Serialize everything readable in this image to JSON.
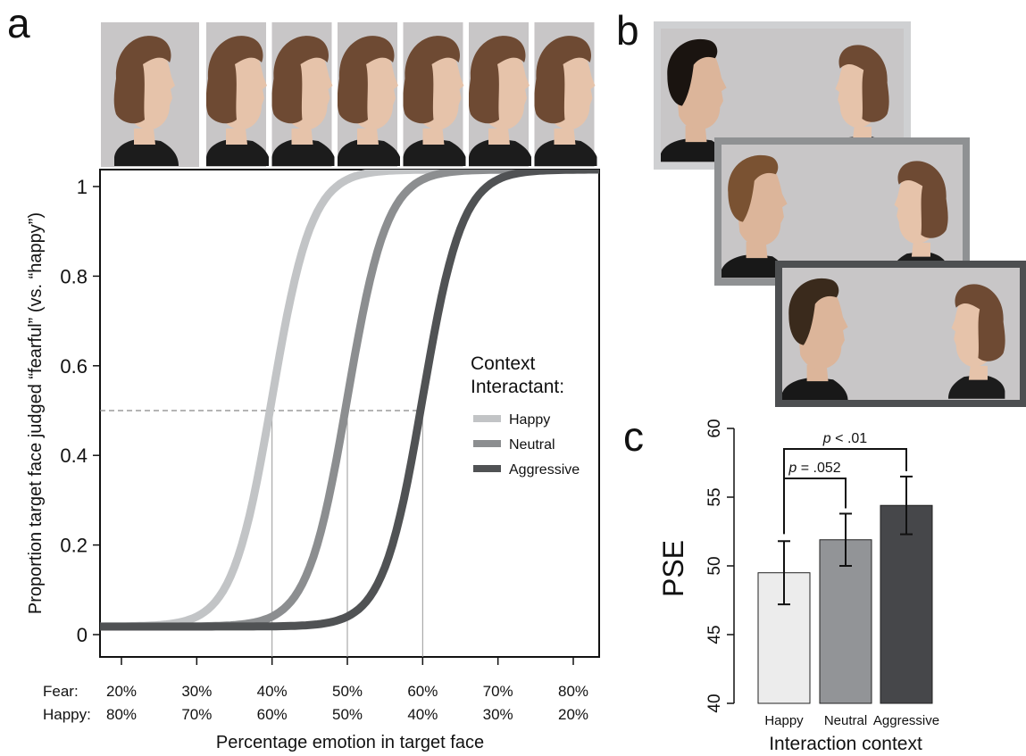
{
  "panels": {
    "a": "a",
    "b": "b",
    "c": "c"
  },
  "colors": {
    "happy": "#c2c4c6",
    "neutral": "#8c8e90",
    "aggressive": "#505254",
    "photo_bg": "#c8c6c7",
    "hair": "#6e4a33",
    "skin": "#e6c3aa",
    "frame_light": "#cfd0d2",
    "frame_mid": "#8f9193",
    "frame_dark": "#4d4f51",
    "bar_happy": "#ececec",
    "bar_neutral": "#929497",
    "bar_aggressive": "#46474a"
  },
  "chart_data": [
    {
      "type": "line",
      "panel": "a",
      "title": "",
      "xlabel": "Percentage emotion in target face",
      "ylabel": "Proportion target face judged “fearful” (vs. “happy”)",
      "ylim": [
        0,
        1.05
      ],
      "yticks": [
        0,
        0.2,
        0.4,
        0.6,
        0.8,
        1
      ],
      "ytick_labels": [
        "0",
        "0.2",
        "0.4",
        "0.6",
        "0.8",
        "1"
      ],
      "xlim": [
        16,
        84
      ],
      "xticks": [
        20,
        30,
        40,
        50,
        60,
        70,
        80
      ],
      "xtick_rows": [
        {
          "label": "Fear:",
          "values": [
            "20%",
            "30%",
            "40%",
            "50%",
            "60%",
            "70%",
            "80%"
          ]
        },
        {
          "label": "Happy:",
          "values": [
            "80%",
            "70%",
            "60%",
            "50%",
            "40%",
            "30%",
            "20%"
          ]
        }
      ],
      "reference_y": 0.5,
      "legend_title": [
        "Context",
        "Interactant:"
      ],
      "legend_position": "right",
      "series": [
        {
          "name": "Happy",
          "pse": 40,
          "slope": 0.38,
          "color_key": "happy"
        },
        {
          "name": "Neutral",
          "pse": 50,
          "slope": 0.38,
          "color_key": "neutral"
        },
        {
          "name": "Aggressive",
          "pse": 60,
          "slope": 0.38,
          "color_key": "aggressive"
        }
      ]
    },
    {
      "type": "bar",
      "panel": "c",
      "title": "",
      "xlabel": "Interaction context",
      "ylabel": "PSE",
      "ylim": [
        40,
        60
      ],
      "yticks": [
        40,
        45,
        50,
        55,
        60
      ],
      "categories": [
        "Happy",
        "Neutral",
        "Aggressive"
      ],
      "values": [
        49.5,
        51.9,
        54.4
      ],
      "errors": [
        2.3,
        1.9,
        2.1
      ],
      "bar_color_keys": [
        "bar_happy",
        "bar_neutral",
        "bar_aggressive"
      ],
      "annotations": [
        {
          "from": 0,
          "to": 1,
          "p_italic": "p",
          "p_rest": " = .052"
        },
        {
          "from": 0,
          "to": 2,
          "p_italic": "p",
          "p_rest": " < .01"
        }
      ]
    }
  ]
}
